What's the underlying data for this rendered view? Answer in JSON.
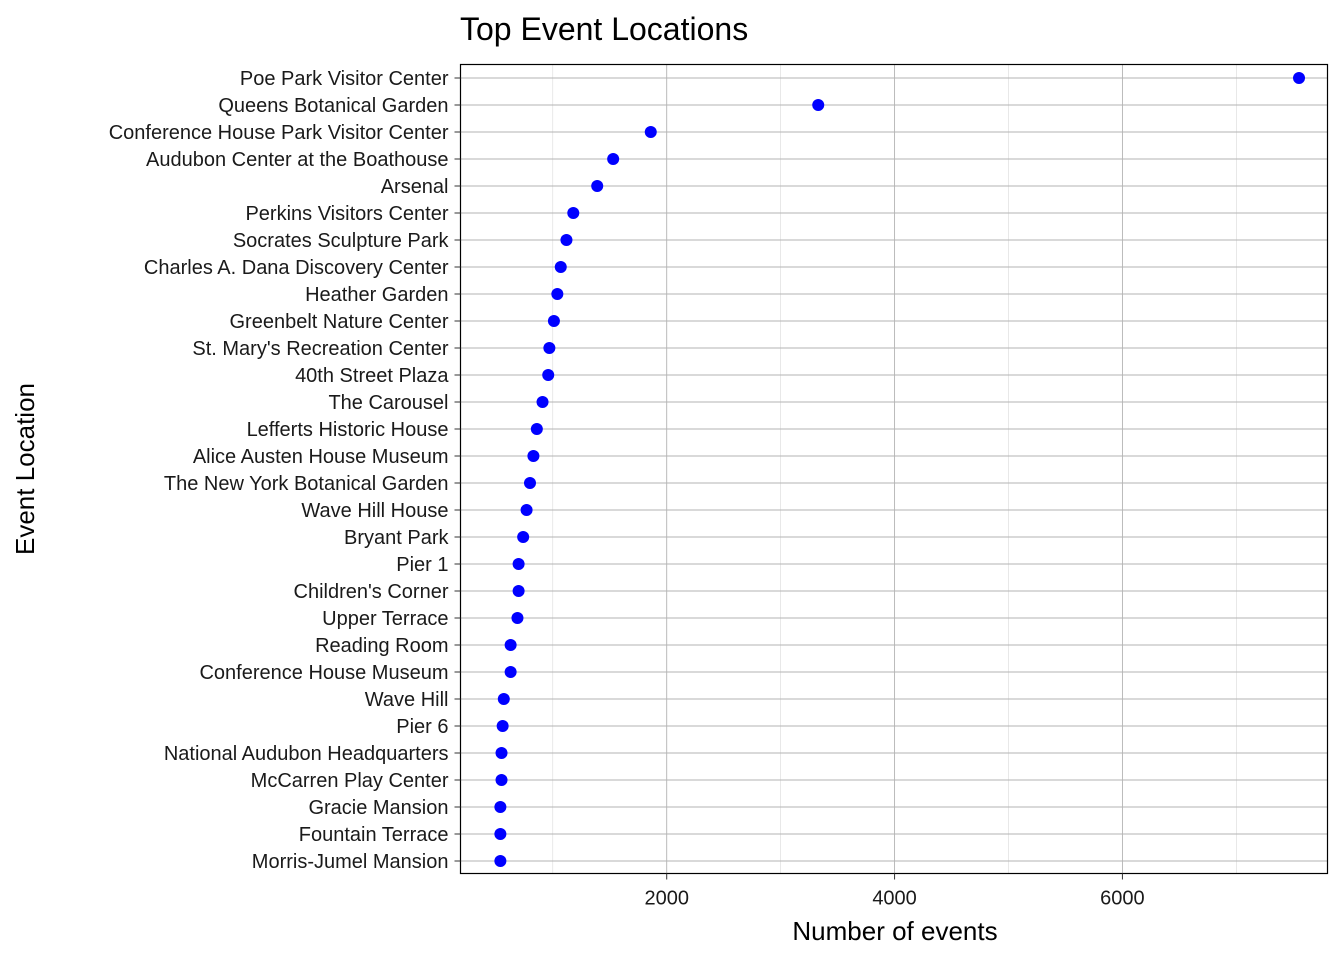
{
  "chart_data": {
    "type": "scatter",
    "title": "Top Event Locations",
    "xlabel": "Number of events",
    "ylabel": "Event Location",
    "xlim": [
      190,
      7800
    ],
    "x_ticks": [
      2000,
      4000,
      6000
    ],
    "x_minor_ticks": [
      1000,
      3000,
      5000,
      7000
    ],
    "point_color": "#0000ff",
    "grid": true,
    "categories": [
      "Poe Park Visitor Center",
      "Queens Botanical Garden",
      "Conference House Park Visitor Center",
      "Audubon Center at the Boathouse",
      "Arsenal",
      "Perkins Visitors Center",
      "Socrates Sculpture Park",
      "Charles A. Dana Discovery Center",
      "Heather Garden",
      "Greenbelt Nature Center",
      "St. Mary's Recreation Center",
      "40th Street Plaza",
      "The Carousel",
      "Lefferts Historic House",
      "Alice Austen House Museum",
      "The New York Botanical Garden",
      "Wave Hill House",
      "Bryant Park",
      "Pier 1",
      "Children's Corner",
      "Upper Terrace",
      "Reading Room",
      "Conference House Museum",
      "Wave Hill",
      "Pier 6",
      "National Audubon Headquarters",
      "McCarren Play Center",
      "Gracie Mansion",
      "Fountain Terrace",
      "Morris-Jumel Mansion"
    ],
    "values": [
      7550,
      3330,
      1860,
      1530,
      1390,
      1180,
      1120,
      1070,
      1040,
      1010,
      970,
      960,
      910,
      860,
      830,
      800,
      770,
      740,
      700,
      700,
      690,
      630,
      630,
      570,
      560,
      550,
      550,
      540,
      540,
      540
    ]
  }
}
